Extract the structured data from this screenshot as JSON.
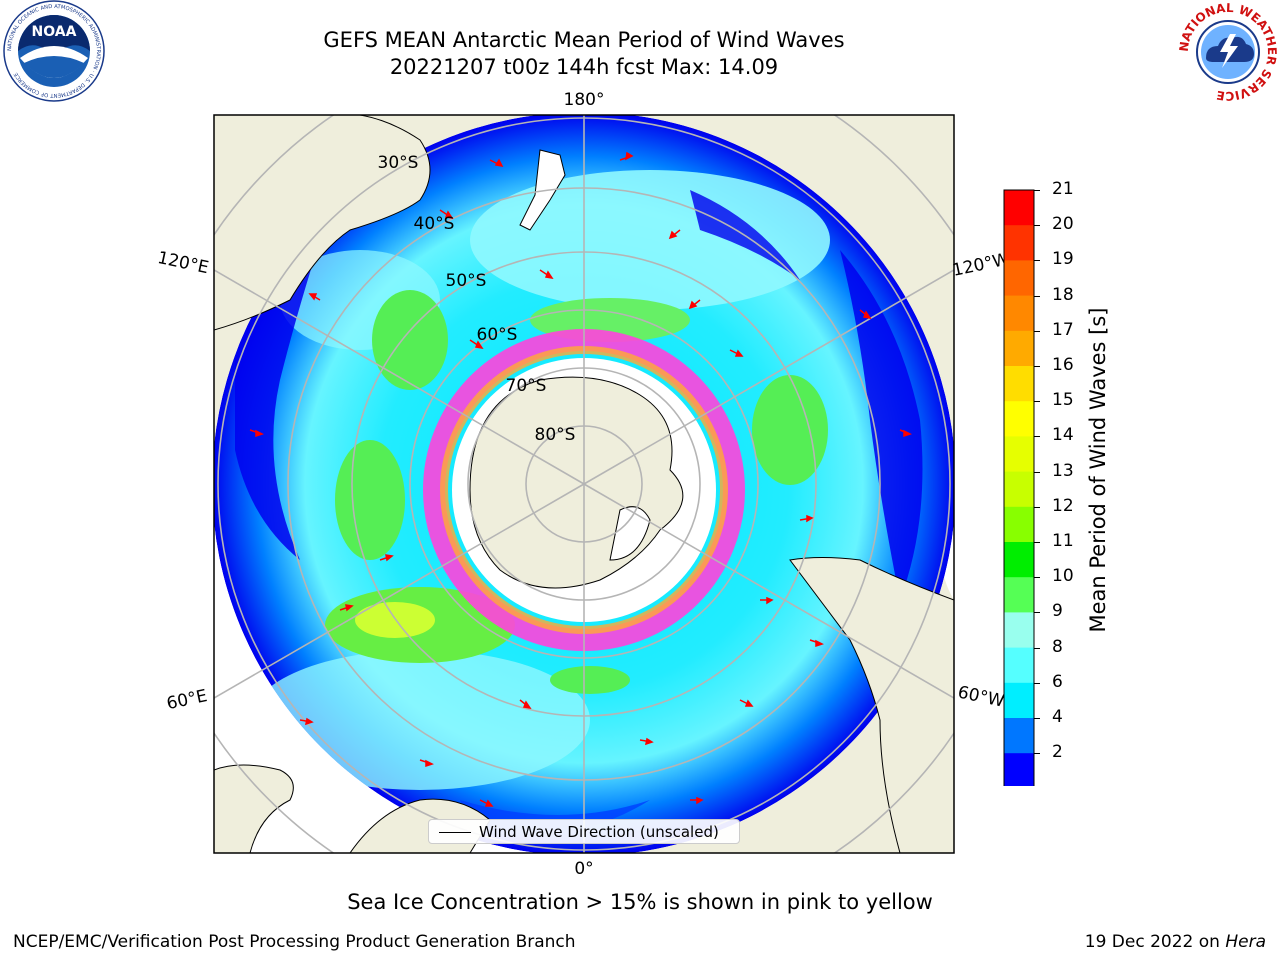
{
  "header": {
    "title_line1": "GEFS MEAN Antarctic Mean Period of Wind Waves",
    "title_line2": "20221207 t00z 144h fcst   Max: 14.09"
  },
  "logos": {
    "noaa_text": "NOAA",
    "noaa_ring": "NATIONAL OCEANIC AND ATMOSPHERIC ADMINISTRATION · U.S. DEPARTMENT OF COMMERCE",
    "nws_ring": "NATIONAL WEATHER SERVICE"
  },
  "map": {
    "lon_labels": [
      "180°",
      "120°E",
      "120°W",
      "60°E",
      "60°W",
      "0°"
    ],
    "lat_labels": [
      "30°S",
      "40°S",
      "50°S",
      "60°S",
      "70°S",
      "80°S"
    ],
    "legend_label": "Wind Wave Direction (unscaled)"
  },
  "colorbar": {
    "label": "Mean Period of Wind Waves [s]",
    "ticks": [
      "21",
      "20",
      "19",
      "18",
      "17",
      "16",
      "15",
      "14",
      "13",
      "12",
      "11",
      "10",
      "9",
      "8",
      "6",
      "4",
      "2"
    ],
    "colors": [
      "#ff0000",
      "#ff3300",
      "#ff6600",
      "#ff8800",
      "#ffaa00",
      "#ffdd00",
      "#ffff00",
      "#e6ff00",
      "#c8ff00",
      "#88ff00",
      "#00ee00",
      "#55ff55",
      "#99ffee",
      "#55ffff",
      "#00eeff",
      "#0077ff",
      "#0000ff"
    ],
    "extend_color": "#0000ff"
  },
  "caption": "Sea Ice Concentration > 15% is shown in pink to yellow",
  "footer": {
    "left": "NCEP/EMC/Verification Post Processing Product Generation Branch",
    "right_prefix": "19 Dec 2022 on ",
    "right_machine": "Hera"
  }
}
